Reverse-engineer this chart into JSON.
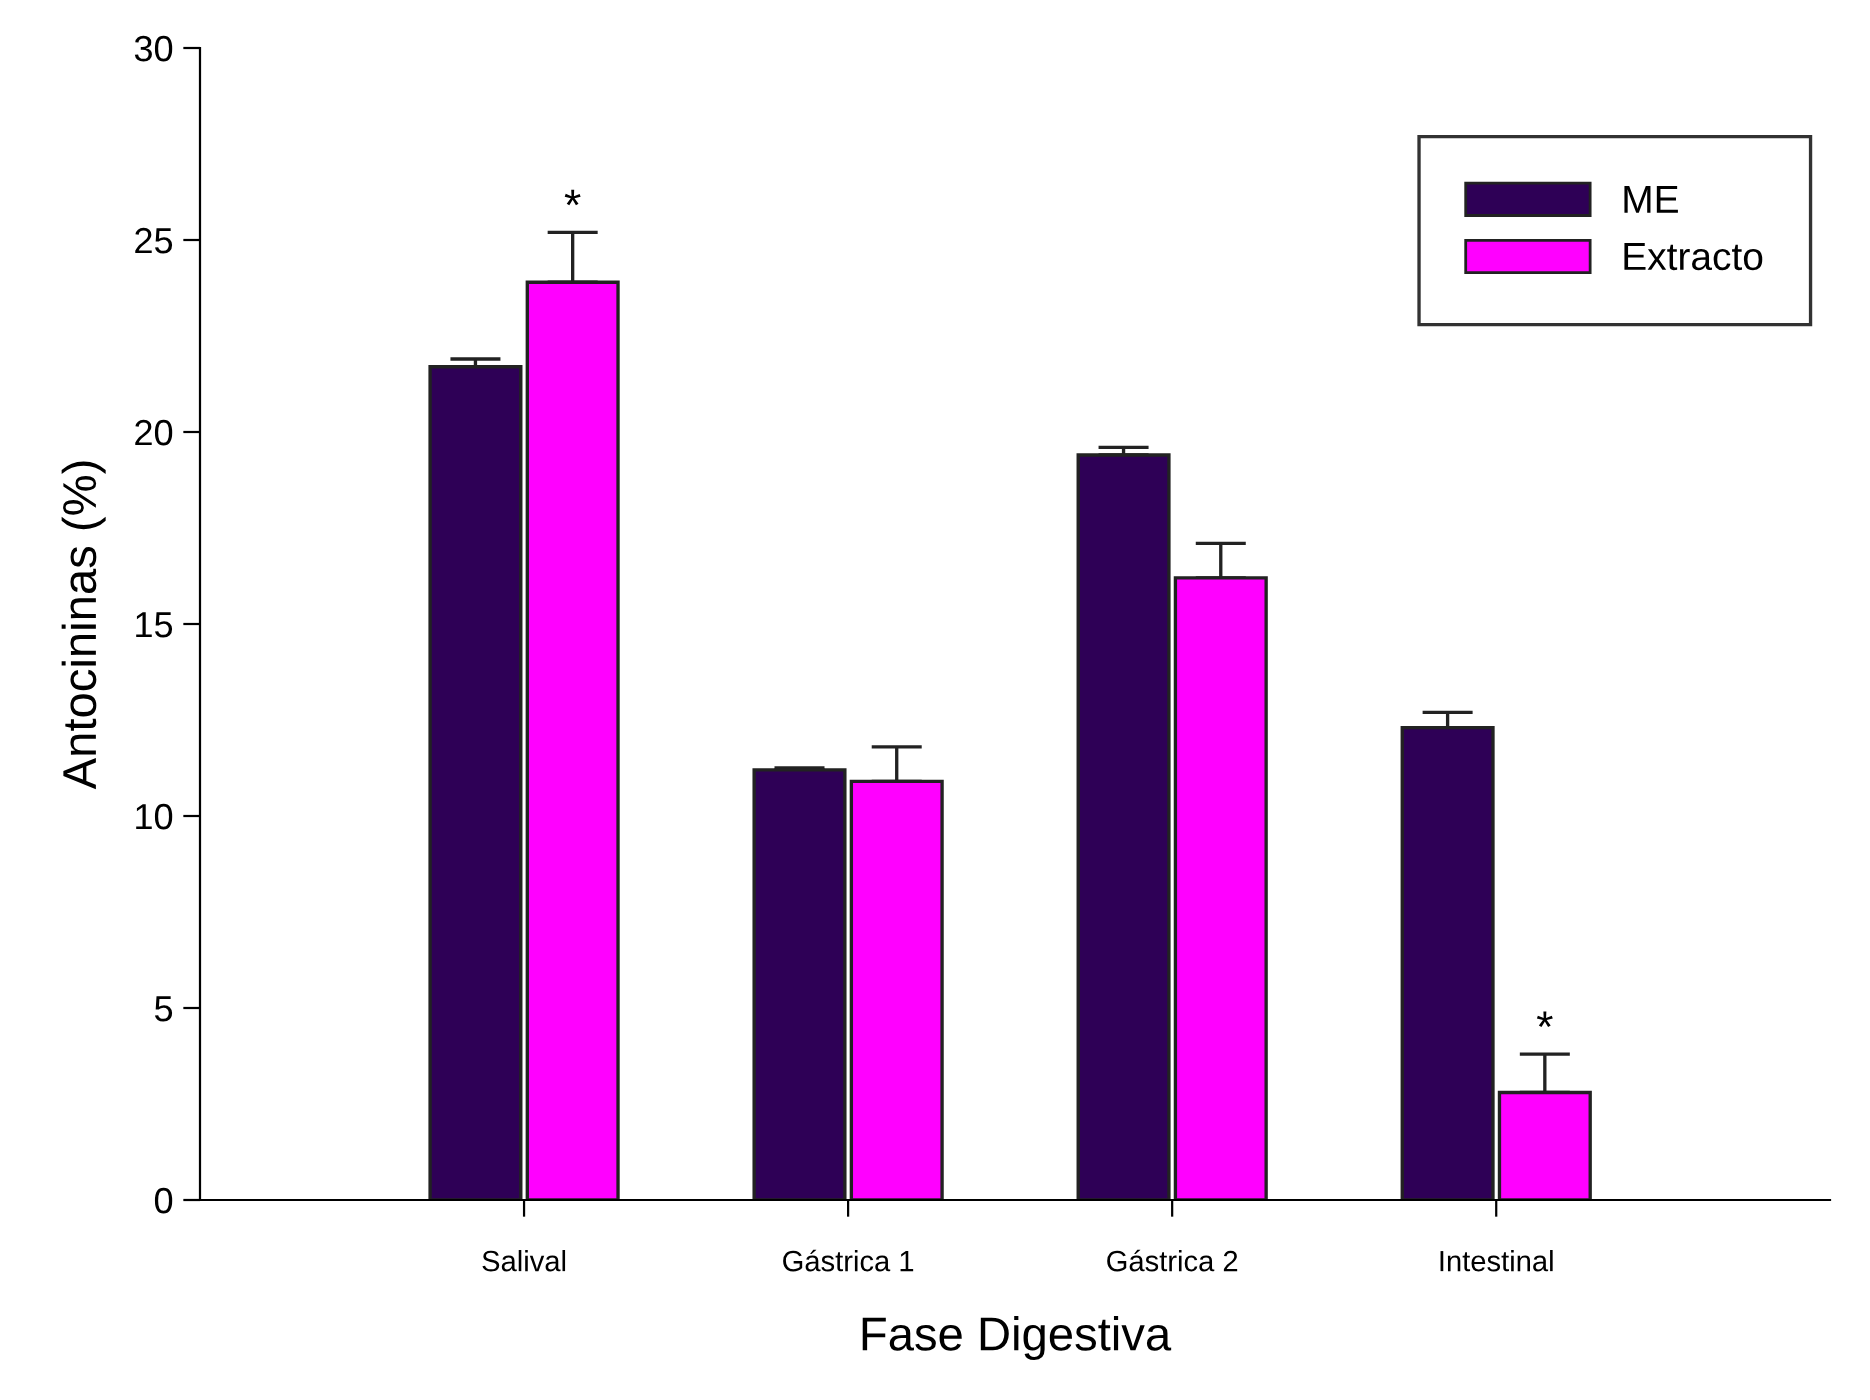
{
  "chart_data": {
    "type": "bar",
    "xlabel": "Fase Digestiva",
    "ylabel": "Antocininas (%)",
    "categories": [
      "Salival",
      "Gástrica 1",
      "Gástrica 2",
      "Intestinal"
    ],
    "series": [
      {
        "name": "ME",
        "color": "#2e0056",
        "values": [
          21.7,
          11.2,
          19.4,
          12.3
        ],
        "errors": [
          [
            21.7,
            21.9
          ],
          [
            11.2,
            11.25
          ],
          [
            19.4,
            19.6
          ],
          [
            12.3,
            12.7
          ]
        ]
      },
      {
        "name": "Extracto",
        "color": "#ff00ff",
        "values": [
          23.9,
          10.9,
          16.2,
          2.8
        ],
        "errors": [
          [
            23.9,
            25.2
          ],
          [
            10.9,
            11.8
          ],
          [
            16.2,
            17.1
          ],
          [
            2.8,
            3.8
          ]
        ],
        "value_labels": [
          "*",
          null,
          null,
          "*"
        ]
      }
    ],
    "ylim": [
      0,
      30
    ],
    "yticks": [
      0,
      5,
      10,
      15,
      20,
      25,
      30
    ],
    "grid": false,
    "legend": "top right"
  }
}
